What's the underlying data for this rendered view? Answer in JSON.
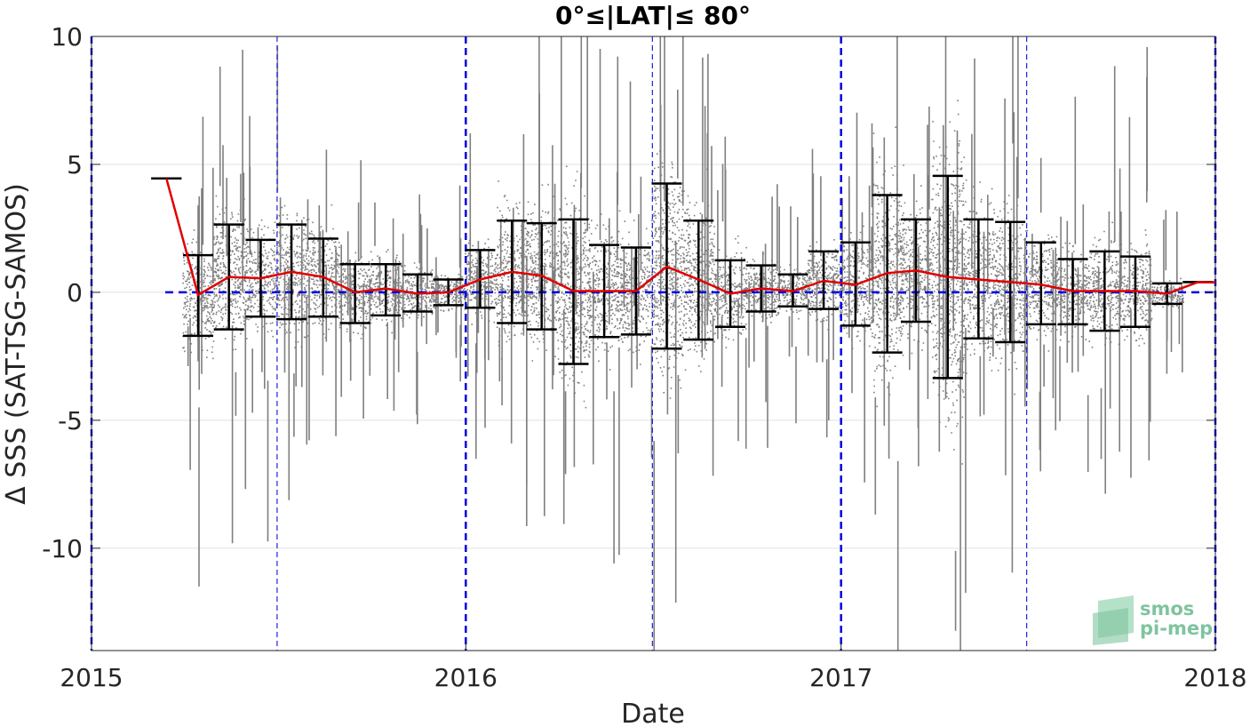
{
  "chart_data": {
    "type": "scatter",
    "title": "0°≤|LAT|≤ 80°",
    "xlabel": "Date",
    "ylabel": "Δ SSS (SAT-TSG-SAMOS)",
    "xlim": [
      "2015-01-01",
      "2018-01-01"
    ],
    "ylim": [
      -14,
      10
    ],
    "x_ticks": [
      "2015",
      "2016",
      "2017",
      "2018"
    ],
    "y_ticks": [
      10,
      5,
      0,
      -5,
      -10
    ],
    "grid": true,
    "reference_lines": {
      "zero_line": 0,
      "year_lines": [
        "2015-01-01",
        "2016-01-01",
        "2017-01-01",
        "2018-01-01"
      ],
      "mid_year_lines": [
        "2015-07-01",
        "2016-07-01",
        "2017-07-01"
      ]
    },
    "series": [
      {
        "kind": "monthly_mean_with_std",
        "x": [
          "2015-03",
          "2015-04",
          "2015-05",
          "2015-06",
          "2015-07",
          "2015-08",
          "2015-09",
          "2015-10",
          "2015-11",
          "2015-12",
          "2016-01",
          "2016-02",
          "2016-03",
          "2016-04",
          "2016-05",
          "2016-06",
          "2016-07",
          "2016-08",
          "2016-09",
          "2016-10",
          "2016-11",
          "2016-12",
          "2017-01",
          "2017-02",
          "2017-03",
          "2017-04",
          "2017-05",
          "2017-06",
          "2017-07",
          "2017-08",
          "2017-09",
          "2017-10",
          "2017-11",
          "2017-12"
        ],
        "mean": [
          4.45,
          -0.1,
          0.6,
          0.55,
          0.8,
          0.6,
          0.0,
          0.15,
          -0.05,
          0.0,
          0.5,
          0.8,
          0.65,
          0.05,
          0.05,
          0.05,
          1.0,
          0.5,
          -0.05,
          0.15,
          0.05,
          0.45,
          0.3,
          0.75,
          0.85,
          0.6,
          0.5,
          0.4,
          0.3,
          0.05,
          0.05,
          0.05,
          -0.05,
          0.4
        ],
        "upper": [
          4.45,
          1.45,
          2.65,
          2.05,
          2.65,
          2.1,
          1.1,
          1.1,
          0.7,
          0.5,
          1.65,
          2.8,
          2.7,
          2.85,
          1.85,
          1.75,
          4.25,
          2.8,
          1.25,
          1.05,
          0.7,
          1.6,
          1.95,
          3.8,
          2.85,
          4.55,
          2.85,
          2.75,
          1.95,
          1.3,
          1.6,
          1.4,
          0.35,
          0.4
        ],
        "lower": [
          4.45,
          -1.7,
          -1.45,
          -0.95,
          -1.05,
          -0.95,
          -1.2,
          -0.9,
          -0.75,
          -0.5,
          -0.6,
          -1.2,
          -1.45,
          -2.8,
          -1.75,
          -1.65,
          -2.2,
          -1.85,
          -1.35,
          -0.75,
          -0.55,
          -0.65,
          -1.3,
          -2.35,
          -1.15,
          -3.35,
          -1.8,
          -1.95,
          -1.25,
          -1.25,
          -1.5,
          -1.35,
          -0.45,
          0.4
        ]
      }
    ],
    "logo": "smos pi-mep"
  }
}
